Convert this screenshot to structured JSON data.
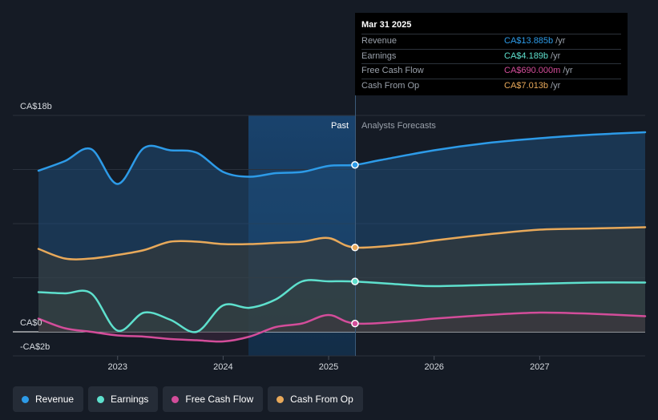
{
  "chart_data": {
    "type": "area",
    "y_unit_label_top": "CA$18b",
    "y_unit_label_zero": "CA$0",
    "y_unit_label_bottom": "-CA$2b",
    "ylim": [
      -2,
      18
    ],
    "xlim": [
      2022.25,
      2028.0
    ],
    "x_ticks": [
      2023,
      2024,
      2025,
      2026,
      2027
    ],
    "x_tick_labels": [
      "2023",
      "2024",
      "2025",
      "2026",
      "2027"
    ],
    "past_region_start": 2024.25,
    "divider_x": 2025.25,
    "past_label": "Past",
    "forecast_label": "Analysts Forecasts",
    "series": [
      {
        "name": "Revenue",
        "color": "#2d9be8",
        "points": [
          [
            2022.25,
            13.4
          ],
          [
            2022.5,
            14.2
          ],
          [
            2022.75,
            15.2
          ],
          [
            2023.0,
            12.3
          ],
          [
            2023.25,
            15.3
          ],
          [
            2023.5,
            15.1
          ],
          [
            2023.75,
            14.9
          ],
          [
            2024.0,
            13.3
          ],
          [
            2024.25,
            12.9
          ],
          [
            2024.5,
            13.2
          ],
          [
            2024.75,
            13.3
          ],
          [
            2025.0,
            13.8
          ],
          [
            2025.25,
            13.885
          ],
          [
            2025.5,
            14.3
          ],
          [
            2026.0,
            15.1
          ],
          [
            2026.5,
            15.7
          ],
          [
            2027.0,
            16.1
          ],
          [
            2027.5,
            16.4
          ],
          [
            2028.0,
            16.6
          ]
        ]
      },
      {
        "name": "Earnings",
        "color": "#5ee0cd",
        "points": [
          [
            2022.25,
            3.3
          ],
          [
            2022.5,
            3.2
          ],
          [
            2022.75,
            3.2
          ],
          [
            2023.0,
            0.1
          ],
          [
            2023.25,
            1.6
          ],
          [
            2023.5,
            1.0
          ],
          [
            2023.75,
            0.0
          ],
          [
            2024.0,
            2.2
          ],
          [
            2024.25,
            2.0
          ],
          [
            2024.5,
            2.7
          ],
          [
            2024.75,
            4.2
          ],
          [
            2025.0,
            4.2
          ],
          [
            2025.25,
            4.189
          ],
          [
            2025.75,
            3.9
          ],
          [
            2026.0,
            3.8
          ],
          [
            2026.5,
            3.9
          ],
          [
            2027.0,
            4.0
          ],
          [
            2027.5,
            4.1
          ],
          [
            2028.0,
            4.1
          ]
        ]
      },
      {
        "name": "Free Cash Flow",
        "color": "#d34d9a",
        "points": [
          [
            2022.25,
            1.1
          ],
          [
            2022.5,
            0.3
          ],
          [
            2022.75,
            0.0
          ],
          [
            2023.0,
            -0.3
          ],
          [
            2023.25,
            -0.4
          ],
          [
            2023.5,
            -0.6
          ],
          [
            2023.75,
            -0.7
          ],
          [
            2024.0,
            -0.8
          ],
          [
            2024.25,
            -0.4
          ],
          [
            2024.5,
            0.4
          ],
          [
            2024.75,
            0.7
          ],
          [
            2025.0,
            1.4
          ],
          [
            2025.25,
            0.69
          ],
          [
            2025.75,
            0.9
          ],
          [
            2026.0,
            1.1
          ],
          [
            2026.5,
            1.4
          ],
          [
            2027.0,
            1.6
          ],
          [
            2027.5,
            1.5
          ],
          [
            2028.0,
            1.3
          ]
        ]
      },
      {
        "name": "Cash From Op",
        "color": "#e8a95a",
        "points": [
          [
            2022.25,
            6.9
          ],
          [
            2022.5,
            6.1
          ],
          [
            2022.75,
            6.1
          ],
          [
            2023.0,
            6.4
          ],
          [
            2023.25,
            6.8
          ],
          [
            2023.5,
            7.5
          ],
          [
            2023.75,
            7.5
          ],
          [
            2024.0,
            7.3
          ],
          [
            2024.25,
            7.3
          ],
          [
            2024.5,
            7.4
          ],
          [
            2024.75,
            7.5
          ],
          [
            2025.0,
            7.8
          ],
          [
            2025.25,
            7.013
          ],
          [
            2025.75,
            7.3
          ],
          [
            2026.0,
            7.6
          ],
          [
            2026.5,
            8.1
          ],
          [
            2027.0,
            8.5
          ],
          [
            2027.5,
            8.6
          ],
          [
            2028.0,
            8.7
          ]
        ]
      }
    ]
  },
  "tooltip": {
    "date": "Mar 31 2025",
    "rows": [
      {
        "label": "Revenue",
        "value": "CA$13.885b",
        "unit": "/yr",
        "color": "#2d9be8"
      },
      {
        "label": "Earnings",
        "value": "CA$4.189b",
        "unit": "/yr",
        "color": "#5ee0cd"
      },
      {
        "label": "Free Cash Flow",
        "value": "CA$690.000m",
        "unit": "/yr",
        "color": "#d34d9a"
      },
      {
        "label": "Cash From Op",
        "value": "CA$7.013b",
        "unit": "/yr",
        "color": "#e8a95a"
      }
    ]
  },
  "legend": [
    {
      "label": "Revenue",
      "color": "#2d9be8"
    },
    {
      "label": "Earnings",
      "color": "#5ee0cd"
    },
    {
      "label": "Free Cash Flow",
      "color": "#d34d9a"
    },
    {
      "label": "Cash From Op",
      "color": "#e8a95a"
    }
  ]
}
